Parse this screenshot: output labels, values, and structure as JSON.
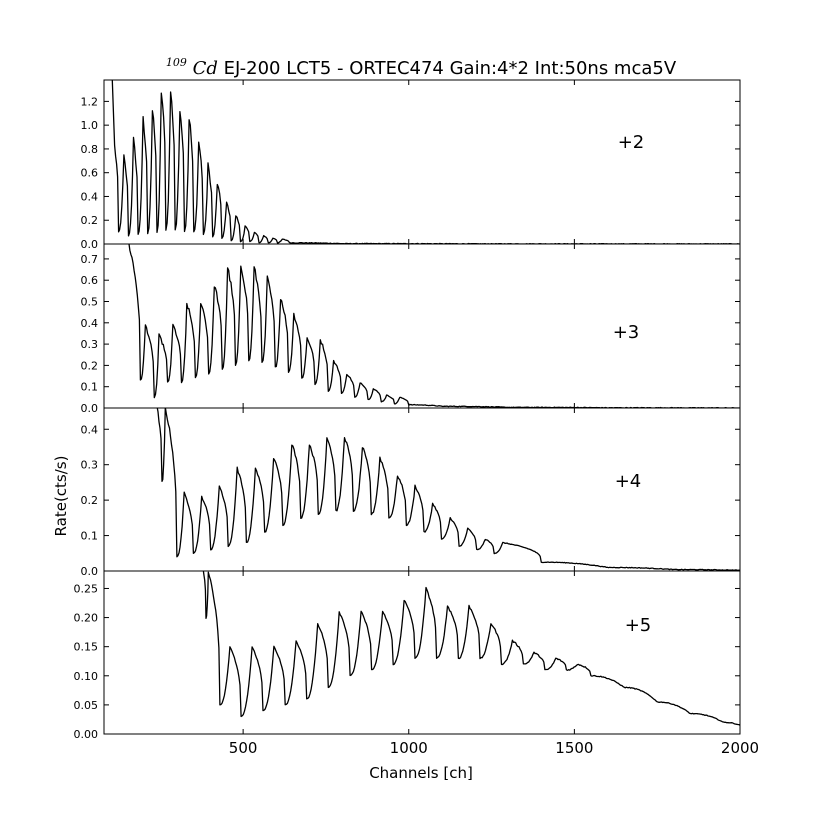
{
  "chart_data": {
    "type": "line",
    "title_superscript": "109",
    "title_symbol": "Cd",
    "title_rest": " EJ-200 LCT5 - ORTEC474 Gain:4*2 Int:50ns mca5V",
    "xlabel": "Channels [ch]",
    "ylabel": "Rate(cts/s)",
    "xlim": [
      80,
      2000
    ],
    "xticks": [
      500,
      1000,
      1500,
      2000
    ],
    "grid": false,
    "legend": "none",
    "line_color": "#000000",
    "panels": [
      {
        "annotation": "+2",
        "ylim": [
          0,
          1.38
        ],
        "yticks": [
          0.0,
          0.2,
          0.4,
          0.6,
          0.8,
          1.0,
          1.2
        ],
        "ytick_labels": [
          "0.0",
          "0.2",
          "0.4",
          "0.6",
          "0.8",
          "1.0",
          "1.2"
        ],
        "peaks": [
          {
            "x": 112,
            "y": 0.82
          },
          {
            "x": 140,
            "y": 0.73
          },
          {
            "x": 169,
            "y": 0.87
          },
          {
            "x": 198,
            "y": 1.04
          },
          {
            "x": 226,
            "y": 1.12
          },
          {
            "x": 253,
            "y": 1.29
          },
          {
            "x": 281,
            "y": 1.29
          },
          {
            "x": 309,
            "y": 1.16
          },
          {
            "x": 337,
            "y": 1.07
          },
          {
            "x": 366,
            "y": 0.86
          },
          {
            "x": 394,
            "y": 0.66
          },
          {
            "x": 422,
            "y": 0.51
          },
          {
            "x": 450,
            "y": 0.35
          },
          {
            "x": 478,
            "y": 0.24
          },
          {
            "x": 506,
            "y": 0.15
          },
          {
            "x": 534,
            "y": 0.1
          },
          {
            "x": 562,
            "y": 0.07
          },
          {
            "x": 590,
            "y": 0.05
          },
          {
            "x": 618,
            "y": 0.04
          }
        ],
        "valleys": [
          {
            "x": 124,
            "y": 0.1
          },
          {
            "x": 154,
            "y": 0.07
          },
          {
            "x": 183,
            "y": 0.08
          },
          {
            "x": 212,
            "y": 0.09
          },
          {
            "x": 240,
            "y": 0.1
          },
          {
            "x": 267,
            "y": 0.12
          },
          {
            "x": 295,
            "y": 0.12
          },
          {
            "x": 323,
            "y": 0.11
          },
          {
            "x": 351,
            "y": 0.1
          },
          {
            "x": 380,
            "y": 0.08
          },
          {
            "x": 408,
            "y": 0.06
          },
          {
            "x": 436,
            "y": 0.05
          },
          {
            "x": 464,
            "y": 0.03
          },
          {
            "x": 492,
            "y": 0.02
          },
          {
            "x": 520,
            "y": 0.02
          },
          {
            "x": 548,
            "y": 0.01
          },
          {
            "x": 576,
            "y": 0.01
          },
          {
            "x": 604,
            "y": 0.01
          },
          {
            "x": 640,
            "y": 0.01
          },
          {
            "x": 800,
            "y": 0.003
          },
          {
            "x": 1200,
            "y": 0.001
          },
          {
            "x": 2000,
            "y": 0.0
          }
        ]
      },
      {
        "annotation": "+3",
        "ylim": [
          0,
          0.77
        ],
        "yticks": [
          0.0,
          0.1,
          0.2,
          0.3,
          0.4,
          0.5,
          0.6,
          0.7
        ],
        "ytick_labels": [
          "0.0",
          "0.1",
          "0.2",
          "0.3",
          "0.4",
          "0.5",
          "0.6",
          "0.7"
        ],
        "peaks": [
          {
            "x": 155,
            "y": 0.77
          },
          {
            "x": 205,
            "y": 0.39
          },
          {
            "x": 246,
            "y": 0.34
          },
          {
            "x": 288,
            "y": 0.39
          },
          {
            "x": 330,
            "y": 0.49
          },
          {
            "x": 372,
            "y": 0.5
          },
          {
            "x": 413,
            "y": 0.58
          },
          {
            "x": 453,
            "y": 0.66
          },
          {
            "x": 493,
            "y": 0.67
          },
          {
            "x": 533,
            "y": 0.66
          },
          {
            "x": 573,
            "y": 0.61
          },
          {
            "x": 613,
            "y": 0.52
          },
          {
            "x": 653,
            "y": 0.44
          },
          {
            "x": 693,
            "y": 0.33
          },
          {
            "x": 733,
            "y": 0.32
          },
          {
            "x": 773,
            "y": 0.22
          },
          {
            "x": 813,
            "y": 0.16
          },
          {
            "x": 853,
            "y": 0.12
          },
          {
            "x": 893,
            "y": 0.09
          },
          {
            "x": 933,
            "y": 0.06
          },
          {
            "x": 973,
            "y": 0.05
          }
        ],
        "valleys": [
          {
            "x": 190,
            "y": 0.13
          },
          {
            "x": 232,
            "y": 0.05
          },
          {
            "x": 272,
            "y": 0.12
          },
          {
            "x": 314,
            "y": 0.12
          },
          {
            "x": 356,
            "y": 0.14
          },
          {
            "x": 396,
            "y": 0.16
          },
          {
            "x": 437,
            "y": 0.18
          },
          {
            "x": 477,
            "y": 0.2
          },
          {
            "x": 517,
            "y": 0.22
          },
          {
            "x": 557,
            "y": 0.21
          },
          {
            "x": 597,
            "y": 0.19
          },
          {
            "x": 637,
            "y": 0.17
          },
          {
            "x": 677,
            "y": 0.14
          },
          {
            "x": 717,
            "y": 0.11
          },
          {
            "x": 757,
            "y": 0.08
          },
          {
            "x": 797,
            "y": 0.07
          },
          {
            "x": 837,
            "y": 0.05
          },
          {
            "x": 877,
            "y": 0.04
          },
          {
            "x": 917,
            "y": 0.03
          },
          {
            "x": 957,
            "y": 0.02
          },
          {
            "x": 1000,
            "y": 0.015
          },
          {
            "x": 1100,
            "y": 0.008
          },
          {
            "x": 1300,
            "y": 0.003
          },
          {
            "x": 1600,
            "y": 0.001
          },
          {
            "x": 2000,
            "y": 0.0
          }
        ]
      },
      {
        "annotation": "+4",
        "ylim": [
          0,
          0.46
        ],
        "yticks": [
          0.0,
          0.1,
          0.2,
          0.3,
          0.4
        ],
        "ytick_labels": [
          "0.0",
          "0.1",
          "0.2",
          "0.3",
          "0.4"
        ],
        "peaks": [
          {
            "x": 240,
            "y": 0.46
          },
          {
            "x": 265,
            "y": 0.46
          },
          {
            "x": 322,
            "y": 0.22
          },
          {
            "x": 375,
            "y": 0.21
          },
          {
            "x": 428,
            "y": 0.24
          },
          {
            "x": 482,
            "y": 0.29
          },
          {
            "x": 537,
            "y": 0.29
          },
          {
            "x": 592,
            "y": 0.32
          },
          {
            "x": 647,
            "y": 0.36
          },
          {
            "x": 700,
            "y": 0.36
          },
          {
            "x": 753,
            "y": 0.38
          },
          {
            "x": 806,
            "y": 0.38
          },
          {
            "x": 860,
            "y": 0.35
          },
          {
            "x": 913,
            "y": 0.32
          },
          {
            "x": 966,
            "y": 0.27
          },
          {
            "x": 1019,
            "y": 0.24
          },
          {
            "x": 1072,
            "y": 0.19
          },
          {
            "x": 1125,
            "y": 0.15
          },
          {
            "x": 1178,
            "y": 0.12
          },
          {
            "x": 1231,
            "y": 0.09
          },
          {
            "x": 1284,
            "y": 0.08
          }
        ],
        "valleys": [
          {
            "x": 255,
            "y": 0.25
          },
          {
            "x": 300,
            "y": 0.04
          },
          {
            "x": 350,
            "y": 0.05
          },
          {
            "x": 402,
            "y": 0.06
          },
          {
            "x": 455,
            "y": 0.07
          },
          {
            "x": 510,
            "y": 0.08
          },
          {
            "x": 565,
            "y": 0.11
          },
          {
            "x": 620,
            "y": 0.13
          },
          {
            "x": 674,
            "y": 0.15
          },
          {
            "x": 727,
            "y": 0.16
          },
          {
            "x": 780,
            "y": 0.17
          },
          {
            "x": 833,
            "y": 0.17
          },
          {
            "x": 887,
            "y": 0.16
          },
          {
            "x": 940,
            "y": 0.15
          },
          {
            "x": 993,
            "y": 0.13
          },
          {
            "x": 1046,
            "y": 0.11
          },
          {
            "x": 1099,
            "y": 0.09
          },
          {
            "x": 1152,
            "y": 0.07
          },
          {
            "x": 1205,
            "y": 0.06
          },
          {
            "x": 1258,
            "y": 0.05
          },
          {
            "x": 1400,
            "y": 0.025
          },
          {
            "x": 1600,
            "y": 0.01
          },
          {
            "x": 1800,
            "y": 0.004
          },
          {
            "x": 2000,
            "y": 0.002
          }
        ]
      },
      {
        "annotation": "+5",
        "ylim": [
          0,
          0.28
        ],
        "yticks": [
          0.0,
          0.05,
          0.1,
          0.15,
          0.2,
          0.25
        ],
        "ytick_labels": [
          "0.00",
          "0.05",
          "0.10",
          "0.15",
          "0.20",
          "0.25"
        ],
        "peaks": [
          {
            "x": 380,
            "y": 0.28
          },
          {
            "x": 395,
            "y": 0.28
          },
          {
            "x": 460,
            "y": 0.15
          },
          {
            "x": 527,
            "y": 0.15
          },
          {
            "x": 593,
            "y": 0.15
          },
          {
            "x": 660,
            "y": 0.16
          },
          {
            "x": 725,
            "y": 0.19
          },
          {
            "x": 790,
            "y": 0.21
          },
          {
            "x": 856,
            "y": 0.21
          },
          {
            "x": 921,
            "y": 0.21
          },
          {
            "x": 986,
            "y": 0.23
          },
          {
            "x": 1052,
            "y": 0.25
          },
          {
            "x": 1117,
            "y": 0.22
          },
          {
            "x": 1182,
            "y": 0.22
          },
          {
            "x": 1248,
            "y": 0.19
          },
          {
            "x": 1313,
            "y": 0.16
          },
          {
            "x": 1378,
            "y": 0.14
          },
          {
            "x": 1444,
            "y": 0.13
          },
          {
            "x": 1509,
            "y": 0.12
          }
        ],
        "valleys": [
          {
            "x": 388,
            "y": 0.2
          },
          {
            "x": 430,
            "y": 0.05
          },
          {
            "x": 494,
            "y": 0.03
          },
          {
            "x": 560,
            "y": 0.04
          },
          {
            "x": 627,
            "y": 0.05
          },
          {
            "x": 692,
            "y": 0.06
          },
          {
            "x": 757,
            "y": 0.08
          },
          {
            "x": 823,
            "y": 0.1
          },
          {
            "x": 888,
            "y": 0.11
          },
          {
            "x": 953,
            "y": 0.12
          },
          {
            "x": 1019,
            "y": 0.13
          },
          {
            "x": 1084,
            "y": 0.13
          },
          {
            "x": 1150,
            "y": 0.13
          },
          {
            "x": 1215,
            "y": 0.13
          },
          {
            "x": 1280,
            "y": 0.12
          },
          {
            "x": 1346,
            "y": 0.12
          },
          {
            "x": 1411,
            "y": 0.11
          },
          {
            "x": 1476,
            "y": 0.11
          },
          {
            "x": 1550,
            "y": 0.1
          },
          {
            "x": 1650,
            "y": 0.08
          },
          {
            "x": 1750,
            "y": 0.055
          },
          {
            "x": 1850,
            "y": 0.035
          },
          {
            "x": 1950,
            "y": 0.02
          },
          {
            "x": 2000,
            "y": 0.015
          }
        ]
      }
    ]
  }
}
